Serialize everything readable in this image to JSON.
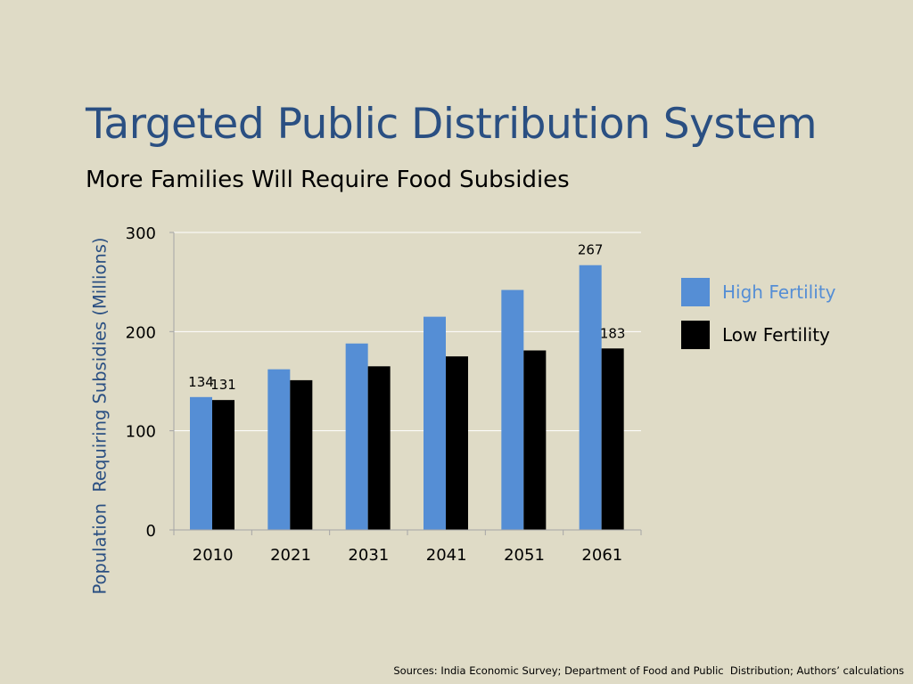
{
  "slide": {
    "title": "Targeted Public Distribution System",
    "subtitle": "More Families Will Require Food Subsidies",
    "sources": "Sources: India Economic Survey; Department of Food and Public  Distribution; Authors’ calculations"
  },
  "chart_data": {
    "type": "bar",
    "ylabel": "Population  Requiring Subsidies (Millions)",
    "categories": [
      "2010",
      "2021",
      "2031",
      "2041",
      "2051",
      "2061"
    ],
    "ylim": [
      0,
      300
    ],
    "yticks": [
      0,
      100,
      200,
      300
    ],
    "grid": true,
    "legend_position": "right",
    "series": [
      {
        "name": "High Fertility",
        "color": "#558ed5",
        "values": [
          134,
          162,
          188,
          215,
          242,
          267
        ],
        "data_labels": [
          "134",
          "",
          "",
          "",
          "",
          "267"
        ]
      },
      {
        "name": "Low Fertility",
        "color": "#000000",
        "values": [
          131,
          151,
          165,
          175,
          181,
          183
        ],
        "data_labels": [
          "131",
          "",
          "",
          "",
          "",
          "183"
        ]
      }
    ]
  }
}
